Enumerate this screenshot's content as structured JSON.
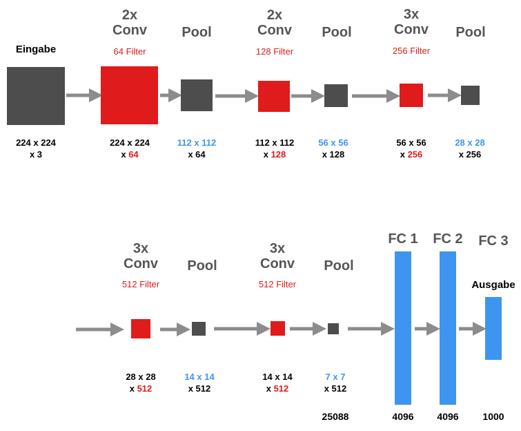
{
  "row1": {
    "input": {
      "label": "Eingabe",
      "dim1": "224 x 224",
      "dim2": "x 3"
    },
    "conv1": {
      "title1": "2x",
      "title2": "Conv",
      "filter": "64 Filter",
      "dim1": "224 x 224",
      "dim2_prefix": "x ",
      "dim2_value": "64"
    },
    "pool1": {
      "title": "Pool",
      "dim1": "112 x 112",
      "dim2": "x 64"
    },
    "conv2": {
      "title1": "2x",
      "title2": "Conv",
      "filter": "128 Filter",
      "dim1": "112 x 112",
      "dim2_prefix": "x ",
      "dim2_value": "128"
    },
    "pool2": {
      "title": "Pool",
      "dim1": "56 x 56",
      "dim2": "x 128"
    },
    "conv3": {
      "title1": "3x",
      "title2": "Conv",
      "filter": "256 Filter",
      "dim1": "56 x 56",
      "dim2_prefix": "x ",
      "dim2_value": "256"
    },
    "pool3": {
      "title": "Pool",
      "dim1": "28 x 28",
      "dim2": "x 256"
    }
  },
  "row2": {
    "conv4": {
      "title1": "3x",
      "title2": "Conv",
      "filter": "512 Filter",
      "dim1": "28 x 28",
      "dim2_prefix": "x ",
      "dim2_value": "512"
    },
    "pool4": {
      "title": "Pool",
      "dim1": "14 x 14",
      "dim2": "x 512"
    },
    "conv5": {
      "title1": "3x",
      "title2": "Conv",
      "filter": "512 Filter",
      "dim1": "14 x 14",
      "dim2_prefix": "x ",
      "dim2_value": "512"
    },
    "pool5": {
      "title": "Pool",
      "dim1": "7 x 7",
      "dim2": "x 512",
      "flat": "25088"
    },
    "fc1": {
      "title": "FC 1",
      "size": "4096"
    },
    "fc2": {
      "title": "FC 2",
      "size": "4096"
    },
    "fc3": {
      "title": "FC 3",
      "output_label": "Ausgabe",
      "size": "1000"
    }
  },
  "colors": {
    "conv": "#e01b1b",
    "pool": "#4d4d4d",
    "fc": "#3d95f0",
    "arrow": "#8c8c8c",
    "title": "#555555"
  }
}
